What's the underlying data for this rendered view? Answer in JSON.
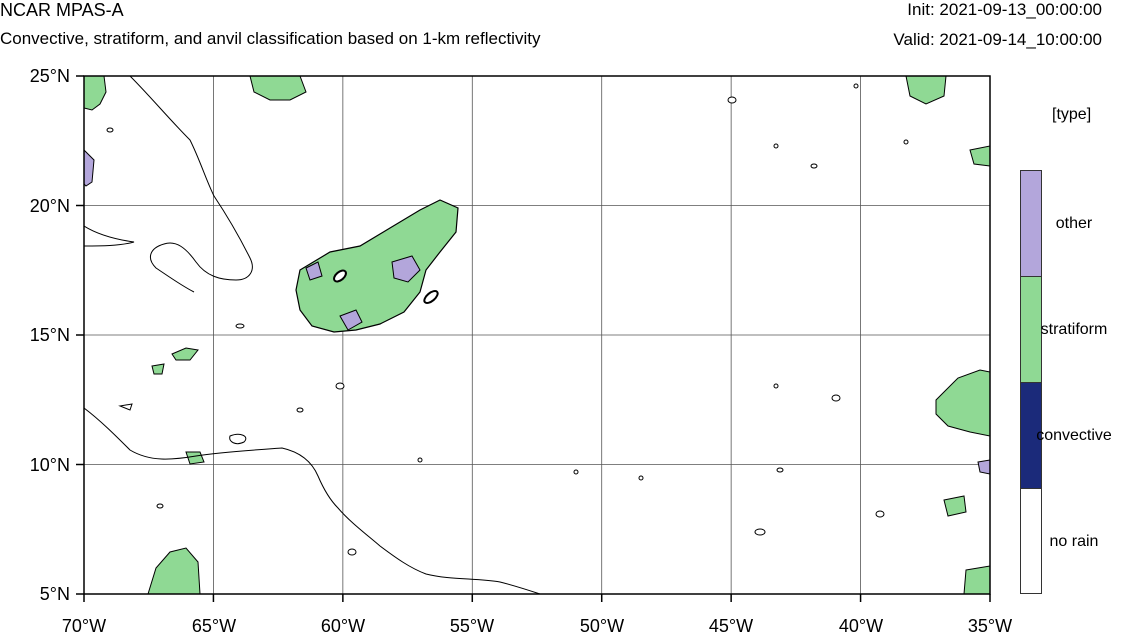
{
  "header": {
    "title": "NCAR MPAS-A",
    "subtitle": "Convective, stratiform, and anvil classification based on 1-km reflectivity",
    "init": "Init: 2021-09-13_00:00:00",
    "valid": "Valid: 2021-09-14_10:00:00"
  },
  "axes": {
    "lat_ticks": [
      "25°N",
      "20°N",
      "15°N",
      "10°N",
      "5°N"
    ],
    "lon_ticks": [
      "70°W",
      "65°W",
      "60°W",
      "55°W",
      "50°W",
      "45°W",
      "40°W",
      "35°W"
    ],
    "lat_range": [
      5,
      25
    ],
    "lon_range": [
      -70,
      -35
    ],
    "grid_lats": [
      20,
      15,
      10
    ],
    "grid_lons": [
      -65,
      -60,
      -55,
      -50,
      -45,
      -40
    ]
  },
  "legend": {
    "title": "[type]",
    "entries": [
      {
        "label": "other",
        "color": "#b3a6db"
      },
      {
        "label": "stratiform",
        "color": "#8fd994"
      },
      {
        "label": "convective",
        "color": "#1b2a7a"
      },
      {
        "label": "no rain",
        "color": "#ffffff"
      }
    ]
  },
  "colors": {
    "other": "#b3a6db",
    "stratiform": "#8fd994",
    "convective": "#1b2a7a",
    "coast": "#000000",
    "grid": "#555555"
  }
}
